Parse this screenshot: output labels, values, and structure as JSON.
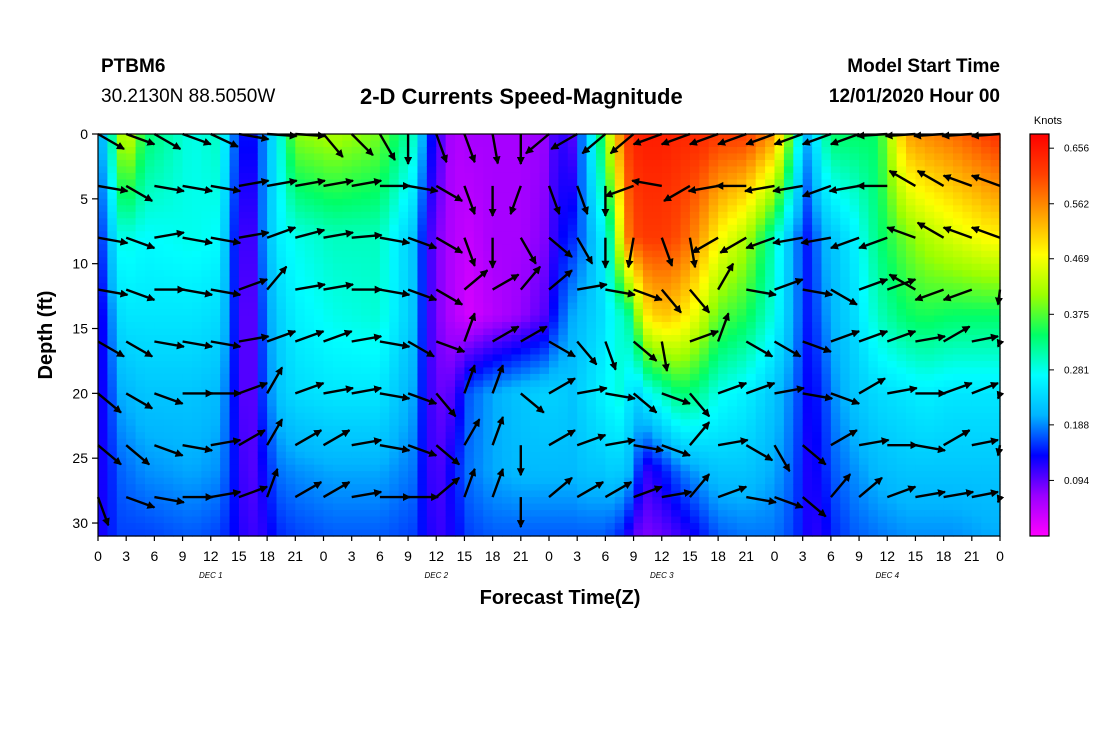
{
  "header": {
    "station": "PTBM6",
    "coordinates": "30.2130N 88.5050W",
    "title": "2-D Currents Speed-Magnitude",
    "model_start_label": "Model Start Time",
    "model_start_value": "12/01/2020 Hour 00"
  },
  "chart_data": {
    "type": "heatmap",
    "title": "2-D Currents Speed-Magnitude",
    "xlabel": "Forecast Time(Z)",
    "ylabel": "Depth (ft)",
    "x_ticks": [
      "0",
      "3",
      "6",
      "9",
      "12",
      "15",
      "18",
      "21",
      "0",
      "3",
      "6",
      "9",
      "12",
      "15",
      "18",
      "21",
      "0",
      "3",
      "6",
      "9",
      "12",
      "15",
      "18",
      "21",
      "0",
      "3",
      "6",
      "9",
      "12",
      "15",
      "18",
      "21",
      "0"
    ],
    "day_labels": [
      "DEC 1",
      "DEC 2",
      "DEC 3",
      "DEC 4"
    ],
    "y_ticks": [
      0,
      5,
      10,
      15,
      20,
      25,
      30
    ],
    "ylim": [
      0,
      31
    ],
    "xlim_hours": [
      0,
      96
    ],
    "colorbar": {
      "label": "Knots",
      "ticks": [
        "0.656",
        "0.562",
        "0.469",
        "0.375",
        "0.281",
        "0.188",
        "0.094"
      ],
      "range": [
        0,
        0.68
      ]
    },
    "colormap": [
      "#ff00ff",
      "#9b00ff",
      "#0000ff",
      "#00b4ff",
      "#00ffff",
      "#00ff66",
      "#9bff00",
      "#ffff00",
      "#ffa000",
      "#ff4000",
      "#ff0000"
    ],
    "depth_levels": [
      0,
      4,
      8,
      12,
      16,
      20,
      24,
      28
    ],
    "speed_profile": {
      "depths": [
        0,
        8,
        14,
        20,
        26,
        31
      ],
      "times": [
        0,
        1.2,
        2,
        3.5,
        5,
        10,
        13,
        14.3,
        15.2,
        16.8,
        17.7,
        19.3,
        21,
        25,
        30,
        33.5,
        35,
        36.2,
        37.8,
        39.5,
        42,
        45,
        47.5,
        49,
        50.5,
        52,
        53.5,
        55,
        56,
        57,
        58,
        60,
        62,
        64,
        66,
        69,
        72,
        74,
        75,
        75.7,
        77,
        78.3,
        80.5,
        83,
        86,
        88,
        91,
        95,
        96
      ],
      "speed": [
        [
          0.19,
          0.25,
          0.42,
          0.43,
          0.34,
          0.28,
          0.3,
          0.19,
          0.14,
          0.14,
          0.19,
          0.28,
          0.4,
          0.42,
          0.39,
          0.3,
          0.16,
          0.11,
          0.05,
          0.06,
          0.06,
          0.06,
          0.07,
          0.12,
          0.1,
          0.22,
          0.34,
          0.5,
          0.6,
          0.64,
          0.65,
          0.65,
          0.64,
          0.64,
          0.62,
          0.62,
          0.55,
          0.35,
          0.23,
          0.2,
          0.3,
          0.34,
          0.34,
          0.34,
          0.54,
          0.56,
          0.58,
          0.62,
          0.63
        ],
        [
          0.14,
          0.2,
          0.28,
          0.28,
          0.27,
          0.28,
          0.27,
          0.16,
          0.11,
          0.11,
          0.2,
          0.26,
          0.28,
          0.3,
          0.3,
          0.22,
          0.12,
          0.08,
          0.05,
          0.04,
          0.06,
          0.06,
          0.08,
          0.13,
          0.15,
          0.19,
          0.25,
          0.35,
          0.55,
          0.6,
          0.62,
          0.62,
          0.6,
          0.55,
          0.48,
          0.42,
          0.3,
          0.2,
          0.16,
          0.14,
          0.2,
          0.22,
          0.26,
          0.33,
          0.39,
          0.42,
          0.45,
          0.48,
          0.48
        ],
        [
          0.12,
          0.16,
          0.24,
          0.25,
          0.25,
          0.25,
          0.24,
          0.16,
          0.1,
          0.1,
          0.18,
          0.23,
          0.26,
          0.28,
          0.29,
          0.22,
          0.12,
          0.08,
          0.05,
          0.03,
          0.05,
          0.07,
          0.1,
          0.16,
          0.2,
          0.22,
          0.24,
          0.28,
          0.3,
          0.34,
          0.48,
          0.52,
          0.5,
          0.45,
          0.38,
          0.35,
          0.28,
          0.2,
          0.16,
          0.14,
          0.18,
          0.21,
          0.24,
          0.3,
          0.34,
          0.35,
          0.34,
          0.34,
          0.34
        ],
        [
          0.12,
          0.15,
          0.2,
          0.21,
          0.22,
          0.22,
          0.21,
          0.15,
          0.1,
          0.1,
          0.17,
          0.22,
          0.24,
          0.25,
          0.25,
          0.2,
          0.12,
          0.09,
          0.1,
          0.17,
          0.2,
          0.22,
          0.23,
          0.23,
          0.22,
          0.24,
          0.26,
          0.28,
          0.29,
          0.22,
          0.26,
          0.3,
          0.34,
          0.32,
          0.28,
          0.26,
          0.22,
          0.18,
          0.15,
          0.13,
          0.15,
          0.19,
          0.22,
          0.24,
          0.25,
          0.26,
          0.25,
          0.25,
          0.25
        ],
        [
          0.12,
          0.14,
          0.17,
          0.18,
          0.19,
          0.2,
          0.19,
          0.15,
          0.11,
          0.1,
          0.14,
          0.18,
          0.19,
          0.2,
          0.2,
          0.18,
          0.12,
          0.1,
          0.14,
          0.18,
          0.2,
          0.21,
          0.21,
          0.21,
          0.21,
          0.22,
          0.22,
          0.23,
          0.22,
          0.2,
          0.11,
          0.14,
          0.18,
          0.2,
          0.22,
          0.22,
          0.2,
          0.17,
          0.14,
          0.12,
          0.14,
          0.17,
          0.19,
          0.21,
          0.22,
          0.22,
          0.22,
          0.22,
          0.22
        ],
        [
          0.12,
          0.14,
          0.16,
          0.16,
          0.16,
          0.17,
          0.16,
          0.14,
          0.12,
          0.11,
          0.12,
          0.15,
          0.16,
          0.17,
          0.17,
          0.16,
          0.13,
          0.11,
          0.13,
          0.16,
          0.17,
          0.17,
          0.17,
          0.17,
          0.17,
          0.17,
          0.17,
          0.16,
          0.14,
          0.1,
          0.08,
          0.09,
          0.11,
          0.14,
          0.17,
          0.18,
          0.18,
          0.16,
          0.14,
          0.12,
          0.12,
          0.15,
          0.17,
          0.18,
          0.19,
          0.19,
          0.19,
          0.2,
          0.2
        ]
      ]
    },
    "vector_angles_deg_cw_from_north": [
      [
        120,
        110,
        120,
        110,
        115,
        100,
        80,
        80,
        140,
        135,
        150,
        180,
        160,
        160,
        170,
        180,
        230,
        240,
        230,
        230,
        250,
        250,
        250,
        250,
        250,
        250,
        250,
        250,
        270,
        275,
        280,
        280,
        290
      ],
      [
        100,
        120,
        100,
        100,
        100,
        80,
        80,
        80,
        80,
        80,
        90,
        100,
        120,
        160,
        180,
        200,
        160,
        160,
        180,
        250,
        280,
        240,
        260,
        270,
        260,
        260,
        250,
        260,
        270,
        300,
        300,
        290,
        290
      ],
      [
        100,
        110,
        80,
        100,
        100,
        80,
        70,
        75,
        80,
        85,
        100,
        110,
        120,
        160,
        180,
        150,
        130,
        150,
        180,
        190,
        160,
        170,
        240,
        240,
        250,
        260,
        260,
        250,
        250,
        290,
        300,
        290,
        290
      ],
      [
        100,
        110,
        90,
        100,
        100,
        70,
        40,
        80,
        80,
        90,
        100,
        110,
        120,
        50,
        60,
        40,
        50,
        80,
        100,
        110,
        140,
        140,
        30,
        100,
        70,
        100,
        120,
        70,
        70,
        300,
        250,
        250,
        120
      ],
      [
        120,
        120,
        100,
        100,
        100,
        80,
        70,
        70,
        70,
        80,
        100,
        120,
        110,
        20,
        60,
        60,
        120,
        140,
        160,
        130,
        170,
        70,
        20,
        120,
        120,
        110,
        70,
        70,
        70,
        80,
        60,
        80,
        100
      ],
      [
        130,
        120,
        110,
        90,
        90,
        70,
        30,
        70,
        80,
        80,
        100,
        110,
        140,
        20,
        20,
        130,
        60,
        80,
        100,
        130,
        110,
        140,
        70,
        70,
        80,
        100,
        110,
        60,
        80,
        90,
        70,
        70,
        100
      ],
      [
        130,
        130,
        110,
        100,
        80,
        60,
        30,
        60,
        60,
        80,
        100,
        110,
        130,
        30,
        20,
        180,
        60,
        70,
        80,
        100,
        110,
        40,
        80,
        120,
        150,
        130,
        60,
        80,
        90,
        100,
        60,
        80,
        110
      ],
      [
        160,
        110,
        100,
        90,
        80,
        70,
        20,
        60,
        60,
        80,
        90,
        90,
        50,
        20,
        20,
        180,
        50,
        60,
        60,
        70,
        80,
        40,
        70,
        100,
        110,
        130,
        40,
        50,
        70,
        80,
        80,
        80,
        100
      ]
    ],
    "legend": "none",
    "grid": false
  }
}
